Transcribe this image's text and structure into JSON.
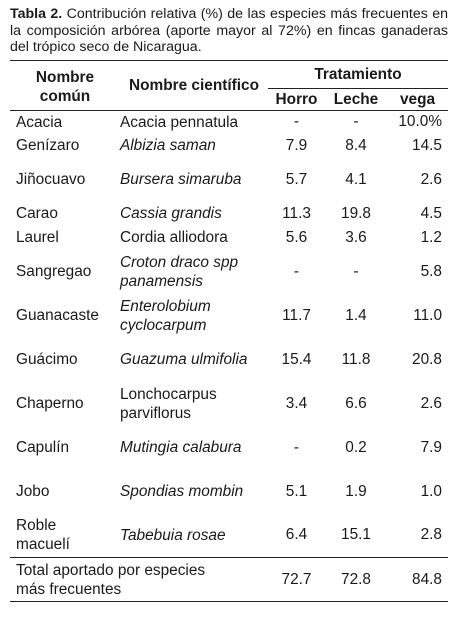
{
  "caption": {
    "label": "Tabla 2.",
    "text": " Contribución relativa (%) de las especies más frecuentes en la composición arbórea (aporte mayor al 72%) en fincas ganaderas del trópico seco de Nicaragua."
  },
  "table": {
    "headers": {
      "common": "Nombre común",
      "scientific": "Nombre científico",
      "treatment": "Tratamiento",
      "cols": [
        "Horro",
        "Leche",
        "vega"
      ]
    },
    "rows": [
      {
        "common": "Acacia",
        "sci": "Acacia pennatula",
        "italic": false,
        "v": [
          "-",
          "-",
          "10.0%"
        ]
      },
      {
        "common": "Genízaro",
        "sci": "Albizia saman",
        "italic": true,
        "v": [
          "7.9",
          "8.4",
          "14.5"
        ]
      },
      {
        "common": "Jiñocuavo",
        "sci": "Bursera simaruba",
        "italic": true,
        "v": [
          "5.7",
          "4.1",
          "2.6"
        ]
      },
      {
        "common": "Carao",
        "sci": "Cassia grandis",
        "italic": true,
        "v": [
          "11.3",
          "19.8",
          "4.5"
        ]
      },
      {
        "common": "Laurel",
        "sci": "Cordia alliodora",
        "italic": false,
        "v": [
          "5.6",
          "3.6",
          "1.2"
        ]
      },
      {
        "common": "Sangregao",
        "sci": "Croton draco spp panamensis",
        "italic": true,
        "v": [
          "-",
          "-",
          "5.8"
        ]
      },
      {
        "common": "Guanacaste",
        "sci": "Enterolobium cyclocarpum",
        "italic": true,
        "v": [
          "11.7",
          "1.4",
          "11.0"
        ]
      },
      {
        "common": "Guácimo",
        "sci": "Guazuma ulmifolia",
        "italic": true,
        "v": [
          "15.4",
          "11.8",
          "20.8"
        ]
      },
      {
        "common": "Chaperno",
        "sci": "Lonchocarpus parviflorus",
        "italic": false,
        "v": [
          "3.4",
          "6.6",
          "2.6"
        ]
      },
      {
        "common": "Capulín",
        "sci": "Mutingia calabura",
        "italic": true,
        "v": [
          "-",
          "0.2",
          "7.9"
        ]
      },
      {
        "common": "Jobo",
        "sci": "Spondias mombin",
        "italic": true,
        "v": [
          "5.1",
          "1.9",
          "1.0"
        ]
      },
      {
        "common": "Roble macuelí",
        "sci": "Tabebuia rosae",
        "italic": true,
        "v": [
          "6.4",
          "15.1",
          "2.8"
        ]
      }
    ],
    "total": {
      "label": "Total aportado por especies más frecuentes",
      "v": [
        "72.7",
        "72.8",
        "84.8"
      ]
    }
  }
}
